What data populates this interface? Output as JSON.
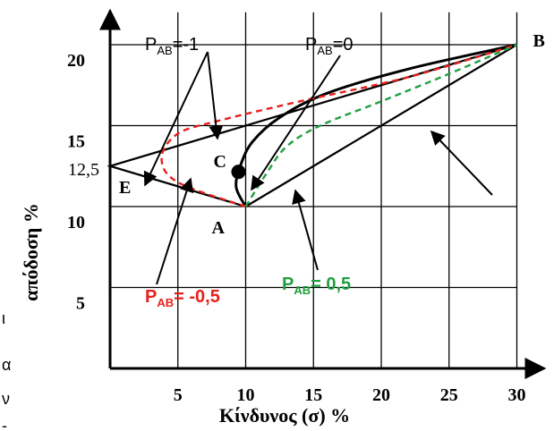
{
  "chart_data": {
    "type": "line",
    "xlabel": "Κίνδυνος (σ) %",
    "ylabel": "απόδοση %",
    "xlim": [
      0,
      32
    ],
    "ylim": [
      0,
      24
    ],
    "x_ticks": [
      5,
      10,
      15,
      20,
      25,
      30
    ],
    "y_ticks": [
      5,
      10,
      15,
      20
    ],
    "y_tick_extra": "12,5",
    "grid": true,
    "points": [
      {
        "name": "A",
        "x": 10,
        "y": 10
      },
      {
        "name": "B",
        "x": 30,
        "y": 20
      },
      {
        "name": "C",
        "x": 9.6,
        "y": 12.2
      },
      {
        "name": "E",
        "x": 0,
        "y": 12.5
      }
    ],
    "series": [
      {
        "name": "P_AB=-1",
        "color": "#000000",
        "x": [
          10,
          0,
          30
        ],
        "y": [
          10,
          12.5,
          20
        ]
      },
      {
        "name": "P_AB=1",
        "color": "#000000",
        "x": [
          10,
          30
        ],
        "y": [
          10,
          20
        ]
      },
      {
        "name": "P_AB=0",
        "color": "#000000",
        "x": [
          10,
          9.3,
          9.6,
          10.5,
          12.5,
          16,
          22,
          30
        ],
        "y": [
          10,
          11.2,
          12.5,
          14,
          15.5,
          17,
          18.5,
          20
        ]
      },
      {
        "name": "P_AB=-0,5",
        "color": "#e8201c",
        "x": [
          10,
          5,
          3.8,
          5,
          8,
          14,
          22,
          30
        ],
        "y": [
          10,
          11.5,
          13,
          14.5,
          15.3,
          16.5,
          18,
          20
        ]
      },
      {
        "name": "P_AB=0,5",
        "color": "#20a040",
        "x": [
          10,
          11.5,
          13,
          15.5,
          20,
          25,
          30
        ],
        "y": [
          10,
          12,
          13.7,
          15,
          16.5,
          18.2,
          20
        ]
      }
    ],
    "annotations": {
      "pab_minus1": {
        "main": "P",
        "sub": "AB",
        "rest": "=-1"
      },
      "pab_0": {
        "main": "P",
        "sub": "AB",
        "rest": "=0"
      },
      "pab_minus05": {
        "main": "P",
        "sub": "AB",
        "rest": "= -0,5"
      },
      "pab_05": {
        "main": "P",
        "sub": "AB",
        "rest": "= 0,5"
      }
    }
  },
  "side_fragments": [
    "ι",
    "α",
    "ν",
    "-"
  ]
}
